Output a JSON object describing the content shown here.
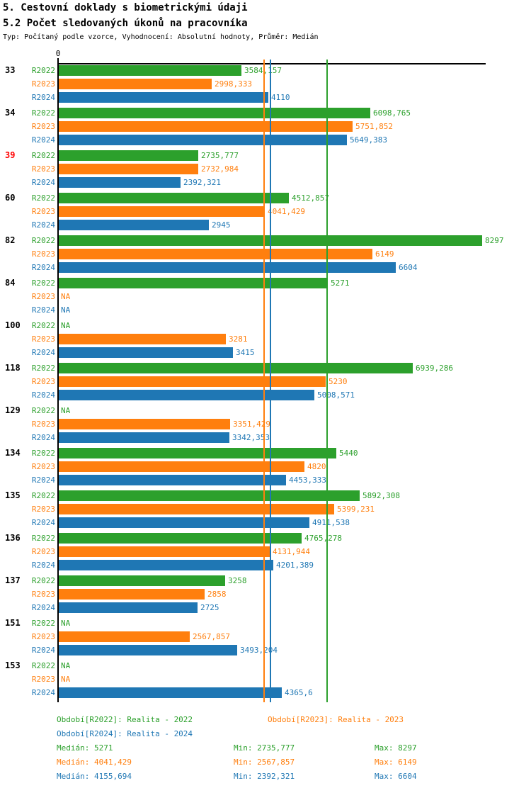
{
  "title": "5. Cestovní doklady s biometrickými údaji",
  "subtitle": "5.2 Počet sledovaných úkonů na pracovníka",
  "meta": "Typ: Počítaný podle vzorce, Vyhodnocení: Absolutní hodnoty, Průměr: Medián",
  "colors": {
    "r2022": "#2ca02c",
    "r2023": "#ff7f0e",
    "r2024": "#1f77b4",
    "highlight": "#ff0000",
    "axis": "#000000"
  },
  "axis": {
    "zero_label": "0"
  },
  "na_label": "NA",
  "chart_data": {
    "type": "bar",
    "orientation": "horizontal",
    "xlim": [
      0,
      8380
    ],
    "grid": false,
    "categories": [
      "33",
      "34",
      "39",
      "60",
      "82",
      "84",
      "100",
      "118",
      "129",
      "134",
      "135",
      "136",
      "137",
      "151",
      "153"
    ],
    "highlighted_categories": [
      "39"
    ],
    "series": [
      {
        "name": "R2022",
        "color": "#2ca02c",
        "values": [
          3584.157,
          6098.765,
          2735.777,
          4512.857,
          8297,
          5271,
          null,
          6939.286,
          null,
          5440,
          5892.308,
          4765.278,
          3258,
          null,
          null
        ],
        "labels": [
          "3584,157",
          "6098,765",
          "2735,777",
          "4512,857",
          "8297",
          "5271",
          "NA",
          "6939,286",
          "NA",
          "5440",
          "5892,308",
          "4765,278",
          "3258",
          "NA",
          "NA"
        ]
      },
      {
        "name": "R2023",
        "color": "#ff7f0e",
        "values": [
          2998.333,
          5751.852,
          2732.984,
          4041.429,
          6149,
          null,
          3281,
          5230,
          3351.429,
          4820,
          5399.231,
          4131.944,
          2858,
          2567.857,
          null
        ],
        "labels": [
          "2998,333",
          "5751,852",
          "2732,984",
          "4041,429",
          "6149",
          "NA",
          "3281",
          "5230",
          "3351,429",
          "4820",
          "5399,231",
          "4131,944",
          "2858",
          "2567,857",
          "NA"
        ]
      },
      {
        "name": "R2024",
        "color": "#1f77b4",
        "values": [
          4110,
          5649.383,
          2392.321,
          2945,
          6604,
          null,
          3415,
          5008.571,
          3342.353,
          4453.333,
          4911.538,
          4201.389,
          2725,
          3493.204,
          4365.6
        ],
        "labels": [
          "4110",
          "5649,383",
          "2392,321",
          "2945",
          "6604",
          "NA",
          "3415",
          "5008,571",
          "3342,353",
          "4453,333",
          "4911,538",
          "4201,389",
          "2725",
          "3493,204",
          "4365,6"
        ]
      }
    ],
    "reference_lines": [
      {
        "series": "R2022",
        "stat": "median",
        "value": 5271,
        "color": "#2ca02c"
      },
      {
        "series": "R2023",
        "stat": "median",
        "value": 4041.429,
        "color": "#ff7f0e"
      },
      {
        "series": "R2024",
        "stat": "median",
        "value": 4155.694,
        "color": "#1f77b4"
      }
    ]
  },
  "legend": {
    "periods": [
      {
        "label": "Období[R2022]: Realita - 2022",
        "color": "#2ca02c"
      },
      {
        "label": "Období[R2023]: Realita - 2023",
        "color": "#ff7f0e"
      },
      {
        "label": "Období[R2024]: Realita - 2024",
        "color": "#1f77b4"
      }
    ],
    "stats": [
      {
        "median": "Medián: 5271",
        "min": "Min: 2735,777",
        "max": "Max: 8297",
        "color": "#2ca02c"
      },
      {
        "median": "Medián: 4041,429",
        "min": "Min: 2567,857",
        "max": "Max: 6149",
        "color": "#ff7f0e"
      },
      {
        "median": "Medián: 4155,694",
        "min": "Min: 2392,321",
        "max": "Max: 6604",
        "color": "#1f77b4"
      }
    ]
  }
}
